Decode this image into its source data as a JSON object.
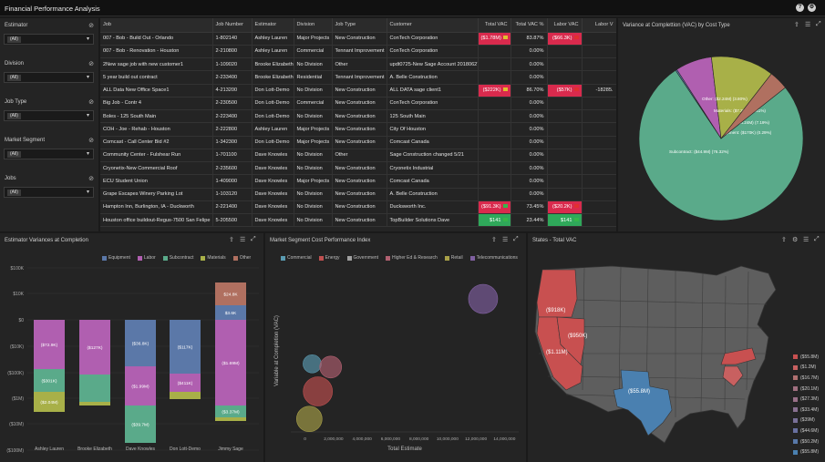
{
  "app": {
    "title": "Financial Performance Analysis"
  },
  "filters": [
    {
      "label": "Estimator",
      "value": "(All)"
    },
    {
      "label": "Division",
      "value": "(All)"
    },
    {
      "label": "Job Type",
      "value": "(All)"
    },
    {
      "label": "Market Segment",
      "value": "(All)"
    },
    {
      "label": "Jobs",
      "value": "(All)"
    }
  ],
  "jobs_table": {
    "columns": [
      "Job",
      "Job Number",
      "Estimator",
      "Division",
      "Job Type",
      "Customer",
      "Total VAC",
      "Total VAC %",
      "Labor VAC",
      "Labor V"
    ],
    "rows": [
      {
        "job": "007 - Bob - Build Out - Orlando",
        "number": "1-802140",
        "estimator": "Ashley Lauren",
        "division": "Major Projects",
        "type": "New Construction",
        "customer": "ConTech Corporation",
        "vac": "($1.78M)",
        "vac_pct": "83.87%",
        "labor": "($66.3K)",
        "labor_pct": "",
        "vac_state": "neg",
        "labor_state": "neg",
        "flag1": "y",
        "flag2": "r"
      },
      {
        "job": "007 - Bob - Renovation - Houston",
        "number": "2-210800",
        "estimator": "Ashley Lauren",
        "division": "Commercial",
        "type": "Tennant Improvement",
        "customer": "ConTech Corporation",
        "vac": "",
        "vac_pct": "0.00%",
        "labor": "",
        "labor_pct": "",
        "vac_state": "",
        "labor_state": "",
        "flag1": "",
        "flag2": ""
      },
      {
        "job": "2New sage job with new customer1",
        "number": "1-109020",
        "estimator": "Brooke Elizabeth",
        "division": "No Division",
        "type": "Other",
        "customer": "updt0725-New Sage Account 20180627",
        "vac": "",
        "vac_pct": "0.00%",
        "labor": "",
        "labor_pct": "",
        "vac_state": "",
        "labor_state": "",
        "flag1": "",
        "flag2": ""
      },
      {
        "job": "5 year build out contract",
        "number": "2-233400",
        "estimator": "Brooke Elizabeth",
        "division": "Residential",
        "type": "Tennant Improvement",
        "customer": "A. Belle Construction",
        "vac": "",
        "vac_pct": "0.00%",
        "labor": "",
        "labor_pct": "",
        "vac_state": "",
        "labor_state": "",
        "flag1": "",
        "flag2": ""
      },
      {
        "job": "ALL Data New Office Space1",
        "number": "4-213200",
        "estimator": "Don Lott-Demo",
        "division": "No Division",
        "type": "New Construction",
        "customer": "ALL DATA sage client1",
        "vac": "($222K)",
        "vac_pct": "86.70%",
        "labor": "($57K)",
        "labor_pct": "-18285.",
        "vac_state": "neg",
        "labor_state": "neg",
        "flag1": "y",
        "flag2": "r"
      },
      {
        "job": "Big Job - Contr 4",
        "number": "2-230500",
        "estimator": "Don Lott-Demo",
        "division": "Commercial",
        "type": "New Construction",
        "customer": "ConTech Corporation",
        "vac": "",
        "vac_pct": "0.00%",
        "labor": "",
        "labor_pct": "",
        "vac_state": "",
        "labor_state": "",
        "flag1": "",
        "flag2": ""
      },
      {
        "job": "Boles - 125 South Main",
        "number": "2-223400",
        "estimator": "Don Lott-Demo",
        "division": "No Division",
        "type": "New Construction",
        "customer": "125 South Main",
        "vac": "",
        "vac_pct": "0.00%",
        "labor": "",
        "labor_pct": "",
        "vac_state": "",
        "labor_state": "",
        "flag1": "",
        "flag2": ""
      },
      {
        "job": "COH - Joe - Rehab - Houston",
        "number": "2-222800",
        "estimator": "Ashley Lauren",
        "division": "Major Projects",
        "type": "New Construction",
        "customer": "City Of Houston",
        "vac": "",
        "vac_pct": "0.00%",
        "labor": "",
        "labor_pct": "",
        "vac_state": "",
        "labor_state": "",
        "flag1": "",
        "flag2": ""
      },
      {
        "job": "Comcast - Call Center Bid #2",
        "number": "1-342300",
        "estimator": "Don Lott-Demo",
        "division": "Major Projects",
        "type": "New Construction",
        "customer": "Comcast Canada",
        "vac": "",
        "vac_pct": "0.00%",
        "labor": "",
        "labor_pct": "",
        "vac_state": "",
        "labor_state": "",
        "flag1": "",
        "flag2": ""
      },
      {
        "job": "Community Center - Fulshear Run",
        "number": "1-701100",
        "estimator": "Dave Knowles",
        "division": "No Division",
        "type": "Other",
        "customer": "Sage Construction changed 5/21",
        "vac": "",
        "vac_pct": "0.00%",
        "labor": "",
        "labor_pct": "",
        "vac_state": "",
        "labor_state": "",
        "flag1": "",
        "flag2": ""
      },
      {
        "job": "Cryonetix-New Commercial Roof",
        "number": "2-235600",
        "estimator": "Dave Knowles",
        "division": "No Division",
        "type": "New Construction",
        "customer": "Cryonetix Industrial",
        "vac": "",
        "vac_pct": "0.00%",
        "labor": "",
        "labor_pct": "",
        "vac_state": "",
        "labor_state": "",
        "flag1": "",
        "flag2": ""
      },
      {
        "job": "ECU Student Union",
        "number": "1-409000",
        "estimator": "Dave Knowles",
        "division": "Major Projects",
        "type": "New Construction",
        "customer": "Comcast Canada",
        "vac": "",
        "vac_pct": "0.00%",
        "labor": "",
        "labor_pct": "",
        "vac_state": "",
        "labor_state": "",
        "flag1": "",
        "flag2": ""
      },
      {
        "job": "Grape Escapes Winery Parking Lot",
        "number": "1-103120",
        "estimator": "Dave Knowles",
        "division": "No Division",
        "type": "New Construction",
        "customer": "A. Belle Construction",
        "vac": "",
        "vac_pct": "0.00%",
        "labor": "",
        "labor_pct": "",
        "vac_state": "",
        "labor_state": "",
        "flag1": "",
        "flag2": ""
      },
      {
        "job": "Hampton Inn, Burlington, IA - Duckworth",
        "number": "2-221400",
        "estimator": "Dave Knowles",
        "division": "No Division",
        "type": "New Construction",
        "customer": "Ducksworth Inc.",
        "vac": "($91.3K)",
        "vac_pct": "73.45%",
        "labor": "($20.2K)",
        "labor_pct": "",
        "vac_state": "neg",
        "labor_state": "neg",
        "flag1": "g",
        "flag2": "r"
      },
      {
        "job": "Houston office buildout-Regus-7500 San Felipe",
        "number": "5-205500",
        "estimator": "Dave Knowles",
        "division": "No Division",
        "type": "New Construction",
        "customer": "TopBuilder Solutions Dave",
        "vac": "$141",
        "vac_pct": "23.44%",
        "labor": "$141",
        "labor_pct": "",
        "vac_state": "pos",
        "labor_state": "pos",
        "flag1": "g",
        "flag2": "g"
      }
    ]
  },
  "pie_panel": {
    "title": "Variance at Complettion (VAC) by Cost Type",
    "chart_data": {
      "type": "pie",
      "slices": [
        {
          "label": "Subcontract: ($44.9M) (76.32%)",
          "value": 76.32,
          "color": "#5aaa8a"
        },
        {
          "label": "Equipment: ($170K) (0.29%)",
          "value": 0.29,
          "color": "#5b78a8"
        },
        {
          "label": "Labor: ($4.24M) (7.19%)",
          "value": 7.19,
          "color": "#b05fb0"
        },
        {
          "label": "Materials: ($7.3M) (12.41%)",
          "value": 12.41,
          "color": "#a8b048"
        },
        {
          "label": "Other: ($2.24M) (3.80%)",
          "value": 3.8,
          "color": "#b07060"
        }
      ]
    }
  },
  "estimator_panel": {
    "title": "Estimator Variances at Completion",
    "chart_data": {
      "type": "bar",
      "stacked": true,
      "categories": [
        "Ashley Lauren",
        "Brooke Elizabeth",
        "Dave Knowles",
        "Don Lott-Demo",
        "Jimmy Sage"
      ],
      "y_tick_labels": [
        "$100K",
        "$10K",
        "$0",
        "($10K)",
        "($100K)",
        "($1M)",
        "($10M)",
        "($100M)"
      ],
      "legend": [
        {
          "name": "Equipment",
          "color": "#5b78a8"
        },
        {
          "name": "Labor",
          "color": "#b05fb0"
        },
        {
          "name": "Subcontract",
          "color": "#5aaa8a"
        },
        {
          "name": "Materials",
          "color": "#a8b048"
        },
        {
          "name": "Other",
          "color": "#b07060"
        }
      ],
      "segments": [
        {
          "cat": 0,
          "type": "Labor",
          "label": "($72.9K)",
          "from": 351,
          "to": 405
        },
        {
          "cat": 0,
          "type": "Subcontract",
          "label": "($301K)",
          "from": 405,
          "to": 430
        },
        {
          "cat": 0,
          "type": "Materials",
          "label": "($2.04M)",
          "from": 430,
          "to": 452
        },
        {
          "cat": 1,
          "type": "Labor",
          "label": "($127K)",
          "from": 351,
          "to": 411
        },
        {
          "cat": 1,
          "type": "Subcontract",
          "label": "",
          "from": 411,
          "to": 441
        },
        {
          "cat": 1,
          "type": "Materials",
          "label": "",
          "from": 441,
          "to": 445
        },
        {
          "cat": 2,
          "type": "Equipment",
          "label": "($36.8K)",
          "from": 351,
          "to": 402
        },
        {
          "cat": 2,
          "type": "Labor",
          "label": "($1.99M)",
          "from": 402,
          "to": 445
        },
        {
          "cat": 2,
          "type": "Subcontract",
          "label": "($39.7M)",
          "from": 445,
          "to": 486
        },
        {
          "cat": 3,
          "type": "Equipment",
          "label": "($117K)",
          "from": 351,
          "to": 410
        },
        {
          "cat": 3,
          "type": "Labor",
          "label": "($411K)",
          "from": 410,
          "to": 430
        },
        {
          "cat": 3,
          "type": "Materials",
          "label": "",
          "from": 430,
          "to": 438
        },
        {
          "cat": 4,
          "type": "Other",
          "label": "$24.8K",
          "from": 310,
          "to": 335
        },
        {
          "cat": 4,
          "type": "Equipment",
          "label": "$3.6K",
          "from": 335,
          "to": 351
        },
        {
          "cat": 4,
          "type": "Labor",
          "label": "($1.69M)",
          "from": 351,
          "to": 445
        },
        {
          "cat": 4,
          "type": "Subcontract",
          "label": "($3.37M)",
          "from": 445,
          "to": 458
        },
        {
          "cat": 4,
          "type": "Materials",
          "label": "",
          "from": 458,
          "to": 462
        }
      ]
    }
  },
  "market_panel": {
    "title": "Market Segment Cost Performance Index",
    "chart_data": {
      "type": "scatter",
      "xlabel": "Total Estimate",
      "ylabel": "Variable at Completion (VAC)",
      "x_ticks": [
        "0",
        "2,000,000",
        "4,000,000",
        "6,000,000",
        "8,000,000",
        "10,000,000",
        "12,000,000",
        "14,000,000"
      ],
      "xlim": [
        -1000000,
        15000000
      ],
      "legend": [
        {
          "name": "Commercial",
          "color": "#5a9ab0"
        },
        {
          "name": "Energy",
          "color": "#c05050"
        },
        {
          "name": "Government",
          "color": "#a0a0a0"
        },
        {
          "name": "Higher Ed & Research",
          "color": "#b06070"
        },
        {
          "name": "Retail",
          "color": "#a8a048"
        },
        {
          "name": "Telecommunications",
          "color": "#8060a0"
        }
      ],
      "points": [
        {
          "x": 12500000,
          "y": 0.82,
          "r": 16,
          "color": "#8060a0"
        },
        {
          "x": 500000,
          "y": 0.42,
          "r": 10,
          "color": "#5a9ab0"
        },
        {
          "x": 1800000,
          "y": 0.4,
          "r": 12,
          "color": "#b06070"
        },
        {
          "x": 900000,
          "y": 0.25,
          "r": 16,
          "color": "#c05050"
        },
        {
          "x": 300000,
          "y": 0.08,
          "r": 14,
          "color": "#a8a048"
        }
      ]
    }
  },
  "states_panel": {
    "title": "States - Total VAC",
    "labels": [
      "($918K)",
      "($950K)",
      "($1.11M)",
      "($55.8M)"
    ],
    "legend": [
      {
        "label": "($55.8M)",
        "color": "#c85050"
      },
      {
        "label": "($1.2M)",
        "color": "#c86060"
      },
      {
        "label": "($16.7M)",
        "color": "#b07070"
      },
      {
        "label": "($20.1M)",
        "color": "#a07080"
      },
      {
        "label": "($27.3M)",
        "color": "#987088"
      },
      {
        "label": "($33.4M)",
        "color": "#887090"
      },
      {
        "label": "($39M)",
        "color": "#787098"
      },
      {
        "label": "($44.6M)",
        "color": "#6870a0"
      },
      {
        "label": "($50.2M)",
        "color": "#5878a8"
      },
      {
        "label": "($55.8M)",
        "color": "#4a80b0"
      }
    ]
  }
}
